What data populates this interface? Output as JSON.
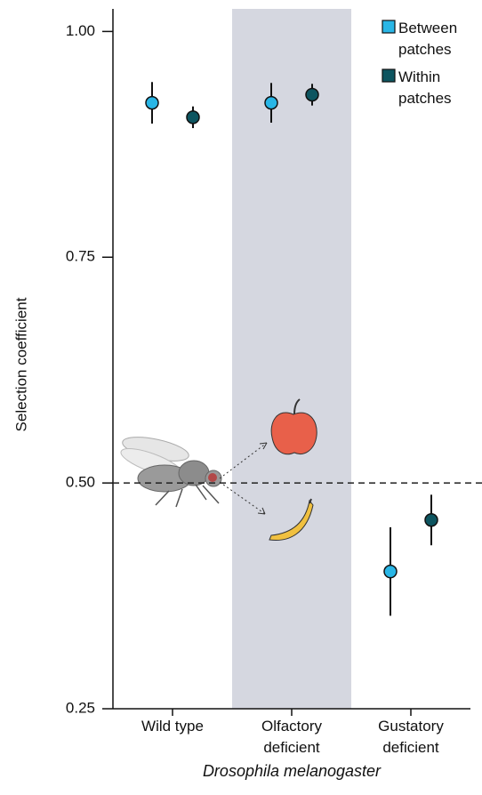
{
  "chart_data": {
    "type": "dot-errorbar",
    "y_label": "Selection coefficient",
    "x_label": "Drosophila melanogaster",
    "categories": [
      "Wild type",
      "Olfactory deficient",
      "Gustatory deficient"
    ],
    "highlight_category": 1,
    "series": [
      {
        "name": "Between patches",
        "color": "#29b6e6",
        "values": [
          0.921,
          0.921,
          0.402
        ],
        "errors": [
          0.023,
          0.022,
          0.049
        ]
      },
      {
        "name": "Within patches",
        "color": "#0d5560",
        "values": [
          0.905,
          0.93,
          0.459
        ],
        "errors": [
          0.012,
          0.012,
          0.028
        ]
      }
    ],
    "ylim": [
      0.25,
      1.025
    ],
    "yticks": [
      {
        "value": 0.25,
        "label": "0.25"
      },
      {
        "value": 0.5,
        "label": "0.50"
      },
      {
        "value": 0.75,
        "label": "0.75"
      },
      {
        "value": 1.0,
        "label": "1.00"
      }
    ],
    "reference_line": 0.5,
    "legend": "top-right"
  }
}
